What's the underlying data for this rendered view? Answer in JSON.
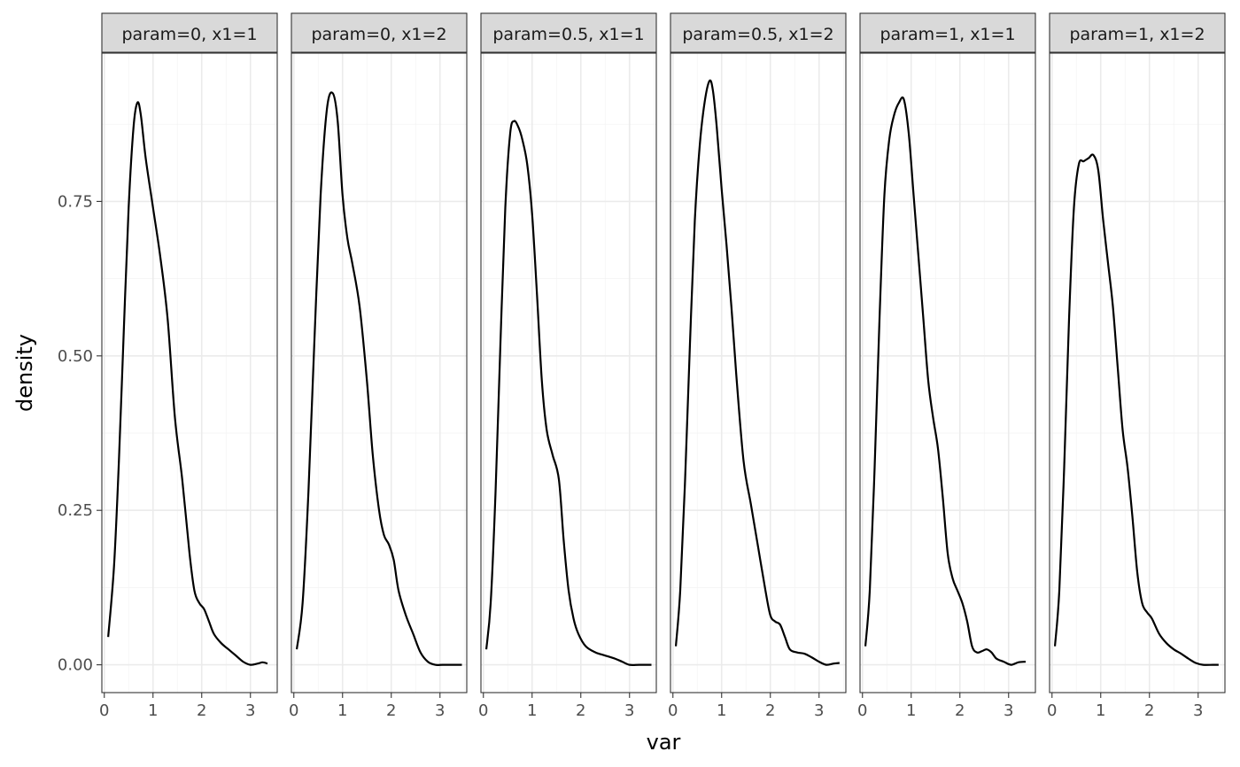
{
  "chart_data": {
    "type": "line",
    "title": "",
    "xlabel": "var",
    "ylabel": "density",
    "xlim": [
      -0.05,
      3.55
    ],
    "ylim": [
      -0.045,
      0.99
    ],
    "x_ticks": [
      0,
      1,
      2,
      3
    ],
    "x_tick_labels": [
      "0",
      "1",
      "2",
      "3"
    ],
    "y_ticks": [
      0,
      0.25,
      0.5,
      0.75
    ],
    "y_tick_labels": [
      "0.00",
      "0.25",
      "0.50",
      "0.75"
    ],
    "grid": true,
    "legend": "none",
    "line_color": "#000000",
    "strip_fill": "#d9d9d9",
    "panels": [
      {
        "label": "param=0, x1=1",
        "x": [
          0.08,
          0.2,
          0.3,
          0.4,
          0.5,
          0.6,
          0.68,
          0.75,
          0.85,
          1.0,
          1.15,
          1.3,
          1.45,
          1.6,
          1.75,
          1.85,
          1.95,
          2.05,
          2.15,
          2.25,
          2.4,
          2.55,
          2.7,
          2.85,
          3.0,
          3.15,
          3.25,
          3.35
        ],
        "y": [
          0.045,
          0.16,
          0.33,
          0.54,
          0.74,
          0.87,
          0.91,
          0.89,
          0.82,
          0.74,
          0.66,
          0.56,
          0.4,
          0.3,
          0.18,
          0.12,
          0.1,
          0.09,
          0.07,
          0.05,
          0.035,
          0.025,
          0.015,
          0.005,
          0.0,
          0.002,
          0.004,
          0.002
        ]
      },
      {
        "label": "param=0, x1=2",
        "x": [
          0.06,
          0.18,
          0.3,
          0.42,
          0.55,
          0.68,
          0.8,
          0.9,
          1.0,
          1.1,
          1.2,
          1.35,
          1.5,
          1.62,
          1.75,
          1.85,
          1.95,
          2.05,
          2.15,
          2.3,
          2.45,
          2.6,
          2.75,
          2.9,
          3.05,
          3.25,
          3.45
        ],
        "y": [
          0.025,
          0.1,
          0.28,
          0.52,
          0.76,
          0.9,
          0.925,
          0.88,
          0.76,
          0.69,
          0.65,
          0.58,
          0.46,
          0.34,
          0.25,
          0.21,
          0.195,
          0.17,
          0.12,
          0.08,
          0.05,
          0.02,
          0.005,
          0.0,
          0.0,
          0.0,
          0.0
        ]
      },
      {
        "label": "param=0.5, x1=1",
        "x": [
          0.06,
          0.15,
          0.25,
          0.35,
          0.45,
          0.55,
          0.63,
          0.72,
          0.8,
          0.9,
          1.0,
          1.1,
          1.2,
          1.3,
          1.42,
          1.55,
          1.65,
          1.75,
          1.85,
          1.95,
          2.1,
          2.3,
          2.5,
          2.7,
          2.85,
          3.0,
          3.2,
          3.45
        ],
        "y": [
          0.025,
          0.1,
          0.28,
          0.52,
          0.74,
          0.86,
          0.88,
          0.87,
          0.85,
          0.81,
          0.73,
          0.6,
          0.46,
          0.38,
          0.34,
          0.3,
          0.2,
          0.12,
          0.075,
          0.05,
          0.03,
          0.02,
          0.015,
          0.01,
          0.005,
          0.0,
          0.0,
          0.0
        ]
      },
      {
        "label": "param=0.5, x1=2",
        "x": [
          0.06,
          0.15,
          0.25,
          0.35,
          0.45,
          0.55,
          0.65,
          0.75,
          0.82,
          0.9,
          1.0,
          1.1,
          1.2,
          1.3,
          1.45,
          1.6,
          1.75,
          1.9,
          2.0,
          2.1,
          2.2,
          2.3,
          2.4,
          2.55,
          2.7,
          2.85,
          3.0,
          3.15,
          3.3,
          3.42
        ],
        "y": [
          0.03,
          0.12,
          0.3,
          0.52,
          0.72,
          0.84,
          0.91,
          0.945,
          0.93,
          0.87,
          0.77,
          0.68,
          0.58,
          0.47,
          0.33,
          0.26,
          0.19,
          0.12,
          0.08,
          0.07,
          0.065,
          0.045,
          0.025,
          0.02,
          0.018,
          0.012,
          0.005,
          0.0,
          0.002,
          0.003
        ]
      },
      {
        "label": "param=1, x1=1",
        "x": [
          0.06,
          0.15,
          0.25,
          0.35,
          0.45,
          0.55,
          0.65,
          0.75,
          0.85,
          0.95,
          1.05,
          1.15,
          1.25,
          1.35,
          1.45,
          1.55,
          1.65,
          1.75,
          1.85,
          1.95,
          2.05,
          2.15,
          2.25,
          2.35,
          2.45,
          2.55,
          2.65,
          2.75,
          2.9,
          3.05,
          3.2,
          3.35
        ],
        "y": [
          0.03,
          0.12,
          0.32,
          0.56,
          0.76,
          0.85,
          0.89,
          0.91,
          0.915,
          0.86,
          0.76,
          0.66,
          0.56,
          0.46,
          0.4,
          0.35,
          0.27,
          0.18,
          0.14,
          0.12,
          0.1,
          0.07,
          0.03,
          0.02,
          0.022,
          0.025,
          0.02,
          0.01,
          0.005,
          0.0,
          0.004,
          0.005
        ]
      },
      {
        "label": "param=1, x1=2",
        "x": [
          0.06,
          0.15,
          0.25,
          0.35,
          0.45,
          0.55,
          0.65,
          0.75,
          0.85,
          0.95,
          1.05,
          1.15,
          1.25,
          1.35,
          1.45,
          1.55,
          1.65,
          1.75,
          1.85,
          1.95,
          2.05,
          2.2,
          2.35,
          2.5,
          2.65,
          2.8,
          2.95,
          3.1,
          3.3,
          3.42
        ],
        "y": [
          0.03,
          0.12,
          0.32,
          0.56,
          0.74,
          0.81,
          0.815,
          0.82,
          0.825,
          0.8,
          0.72,
          0.65,
          0.58,
          0.48,
          0.38,
          0.32,
          0.24,
          0.15,
          0.1,
          0.085,
          0.075,
          0.05,
          0.035,
          0.025,
          0.018,
          0.01,
          0.003,
          0.0,
          0.0,
          0.0
        ]
      }
    ]
  }
}
